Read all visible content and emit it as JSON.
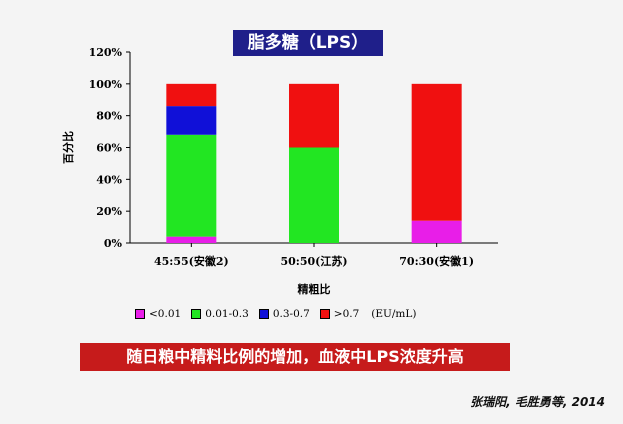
{
  "chart_data": {
    "type": "bar",
    "stacked": true,
    "title": "脂多糖（LPS）",
    "ylabel": "百分比",
    "xlabel": "精粗比",
    "ylim": [
      0,
      120
    ],
    "yticks": [
      "0%",
      "20%",
      "40%",
      "60%",
      "80%",
      "100%",
      "120%"
    ],
    "categories": [
      "45:55(安徽2)",
      "50:50(江苏)",
      "70:30(安徽1)"
    ],
    "series": [
      {
        "name": "<0.01",
        "color": "#e81ee8",
        "values": [
          4,
          0,
          14
        ]
      },
      {
        "name": "0.01-0.3",
        "color": "#22e622",
        "values": [
          64,
          60,
          0
        ]
      },
      {
        "name": "0.3-0.7",
        "color": "#1010d8",
        "values": [
          18,
          0,
          0
        ]
      },
      {
        "name": ">0.7",
        "color": "#f01010",
        "values": [
          14,
          40,
          86
        ]
      }
    ],
    "legend_unit": "(EU/mL)",
    "legend_position": "bottom"
  },
  "banner": "随日粮中精料比例的增加，血液中LPS浓度升高",
  "citation": "张瑞阳, 毛胜勇等, 2014"
}
